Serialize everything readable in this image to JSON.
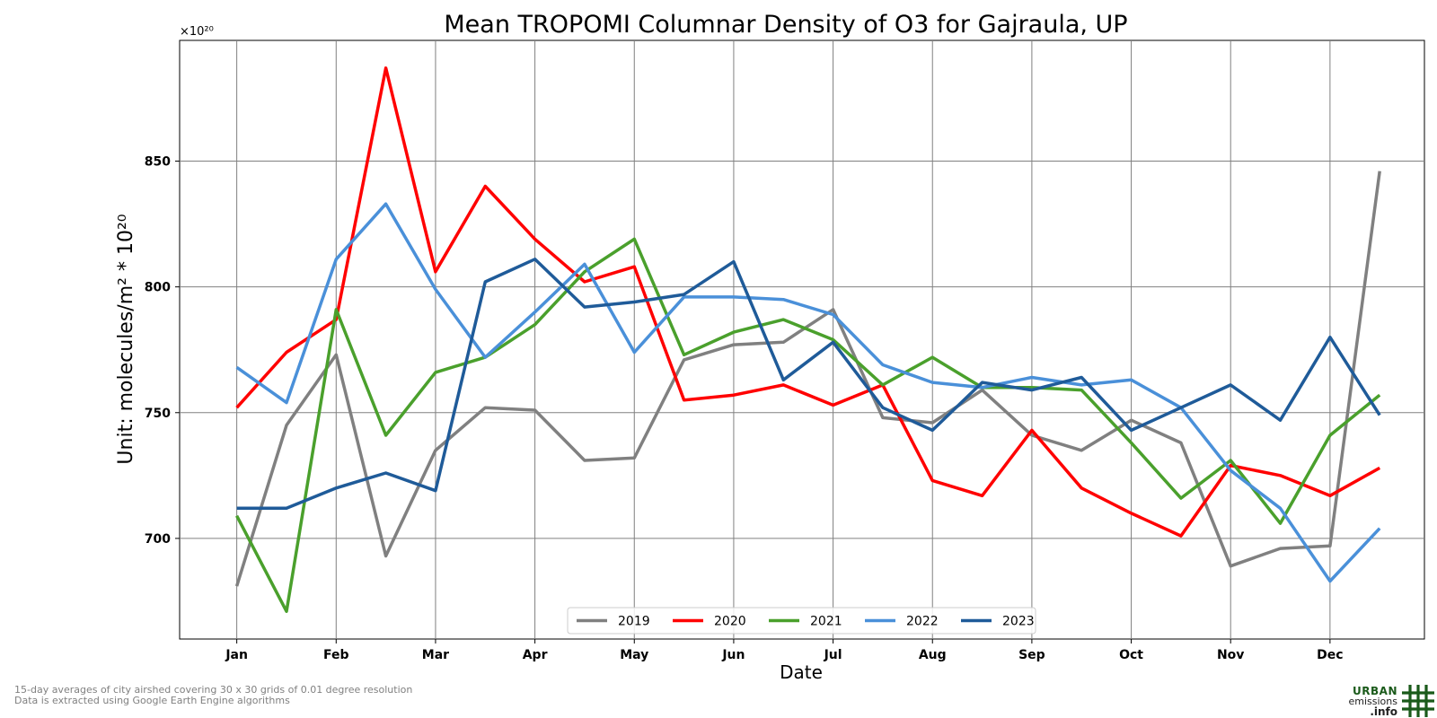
{
  "chart_data": {
    "type": "line",
    "title": "Mean TROPOMI Columnar Density of O3 for Gajraula, UP",
    "xlabel": "Date",
    "ylabel": "Unit: molecules/m² * 10²⁰",
    "y_offset_label": "×10²⁰",
    "ylim": [
      660,
      898
    ],
    "yticks": [
      700,
      750,
      800,
      850
    ],
    "grid": true,
    "legend_position": "bottom-center",
    "x_tick_labels": [
      "Jan",
      "Feb",
      "Mar",
      "Apr",
      "May",
      "Jun",
      "Jul",
      "Aug",
      "Sep",
      "Oct",
      "Nov",
      "Dec"
    ],
    "x_tick_positions": [
      0,
      2,
      4,
      6,
      8,
      10,
      12,
      14,
      16,
      18,
      20,
      22
    ],
    "x_range": [
      -1.15,
      23.9
    ],
    "x": [
      0,
      1,
      2,
      3,
      4,
      5,
      6,
      7,
      8,
      9,
      10,
      11,
      12,
      13,
      14,
      15,
      16,
      17,
      18,
      19,
      20,
      21,
      22,
      23
    ],
    "series": [
      {
        "name": "2019",
        "color": "#808080",
        "values": [
          681,
          745,
          773,
          693,
          735,
          752,
          751,
          731,
          732,
          771,
          777,
          778,
          791,
          748,
          746,
          759,
          741,
          735,
          747,
          738,
          689,
          696,
          697,
          846
        ]
      },
      {
        "name": "2020",
        "color": "#ff0000",
        "values": [
          752,
          774,
          787,
          887,
          806,
          840,
          819,
          802,
          808,
          755,
          757,
          761,
          753,
          761,
          723,
          717,
          743,
          720,
          710,
          701,
          729,
          725,
          717,
          728
        ]
      },
      {
        "name": "2021",
        "color": "#4aa02c",
        "values": [
          709,
          671,
          791,
          741,
          766,
          772,
          785,
          806,
          819,
          773,
          782,
          787,
          779,
          761,
          772,
          760,
          760,
          759,
          738,
          716,
          731,
          706,
          741,
          757
        ]
      },
      {
        "name": "2022",
        "color": "#4a90d9",
        "values": [
          768,
          754,
          811,
          833,
          799,
          772,
          790,
          809,
          774,
          796,
          796,
          795,
          789,
          769,
          762,
          760,
          764,
          761,
          763,
          752,
          727,
          712,
          683,
          704
        ]
      },
      {
        "name": "2023",
        "color": "#1f5b99",
        "values": [
          712,
          712,
          720,
          726,
          719,
          802,
          811,
          792,
          794,
          797,
          810,
          763,
          778,
          752,
          743,
          762,
          759,
          764,
          743,
          752,
          761,
          747,
          780,
          749
        ]
      }
    ]
  },
  "footer": {
    "line1": "15-day averages of city airshed covering 30 x 30 grids of 0.01 degree resolution",
    "line2": "Data is extracted using Google Earth Engine algorithms"
  },
  "logo": {
    "line1": "URBAN",
    "line2": "emissions",
    "line3": ".info"
  }
}
